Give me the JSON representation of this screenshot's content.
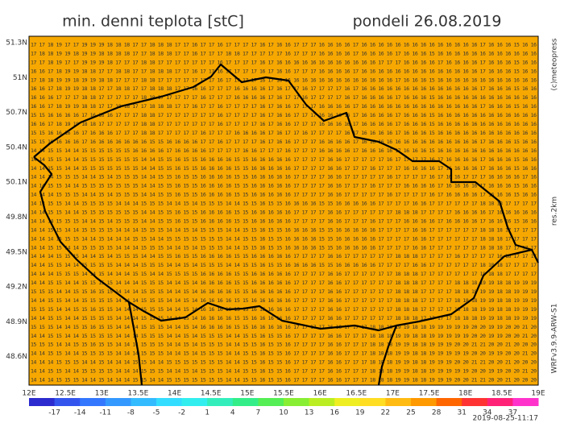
{
  "header": {
    "title": "min. denni teplota [stC]",
    "date": "pondeli 26.08.2019"
  },
  "side_texts": {
    "copyright": "(c)meteopress",
    "resolution": "res.2km",
    "model": "WRFv3.9.9-ARW-S1"
  },
  "timestamp": "2019-08-25-11:17",
  "map": {
    "lat_labels": [
      "51.3N",
      "51N",
      "50.7N",
      "50.4N",
      "50.1N",
      "49.8N",
      "49.5N",
      "49.2N",
      "48.9N",
      "48.6N"
    ],
    "lon_labels": [
      "12E",
      "12.5E",
      "13E",
      "13.5E",
      "14E",
      "14.5E",
      "15E",
      "15.5E",
      "16E",
      "16.5E",
      "17E",
      "17.5E",
      "18E",
      "18.5E",
      "19E"
    ],
    "background": "#f7a800",
    "rows": [
      "17 17 18 19 17 17 19 19 19 18 18 18 17 17 18 18 18 17 17 16 17 17 16 17 17 17 17 16 17 16 16 17 17 17 16 16 16 16 17 16 16 16 16 16 16 16 16 16 16 16 16 16 16 17 16 16 16 15 16 16",
      "17 18 18 19 19 18 19 19 18 18 18 18 17 17 18 18 18 17 17 16 17 17 17 18 18 17 17 17 17 17 16 17 17 17 16 16 16 16 17 16 16 16 16 17 16 16 16 15 16 16 16 16 16 16 16 16 16 16 16 16",
      "17 17 18 19 17 17 19 19 19 18 17 17 17 18 18 17 17 17 17 17 17 17 16 17 17 17 17 16 17 16 16 16 16 16 16 16 16 16 16 16 16 17 17 17 16 16 16 16 17 16 16 16 16 17 16 16 16 15 16 16",
      "16 16 17 18 19 19 18 18 17 17 18 18 17 17 18 18 18 17 17 16 17 17 16 17 17 17 17 16 17 16 16 17 17 17 16 16 16 16 17 16 16 16 16 16 16 16 16 16 16 16 16 16 16 17 16 16 16 15 16 16",
      "17 18 18 19 19 18 19 19 18 18 17 17 17 18 18 17 17 17 17 17 17 17 16 17 17 17 17 16 17 16 16 16 16 16 16 16 16 16 16 16 16 16 16 17 16 16 16 15 16 16 16 16 16 16 16 16 16 16 16 16",
      "16 16 17 18 19 19 18 18 17 17 18 18 17 17 18 18 18 17 17 16 16 17 17 17 16 16 16 16 17 16 17 17 16 17 17 17 17 16 17 16 16 16 16 16 16 16 16 16 16 16 16 16 16 17 16 16 16 15 16 16",
      "16 16 16 17 17 17 18 18 17 17 17 17 17 18 18 17 17 17 17 17 16 17 17 17 16 16 16 16 17 16 17 17 16 17 17 17 17 16 17 16 16 16 16 17 16 16 16 15 16 16 16 16 16 16 16 16 16 16 16 16",
      "16 16 17 18 19 19 18 18 17 17 18 18 17 17 18 18 18 17 17 16 17 17 16 17 17 17 17 16 17 16 16 17 17 17 16 16 16 16 17 16 16 16 16 16 16 16 16 16 16 16 16 16 16 17 16 16 16 15 16 16",
      "15 15 16 16 16 16 17 16 16 16 17 17 17 18 18 17 17 17 17 17 17 17 16 17 17 17 17 16 17 16 16 17 17 17 16 16 16 16 17 16 16 16 16 17 16 16 16 15 16 16 16 16 16 16 16 16 16 16 16 16",
      "16 16 17 18 19 19 18 18 17 17 17 17 17 18 18 17 17 17 17 17 17 17 16 17 17 17 17 16 17 16 16 17 17 17 16 16 16 16 17 16 16 16 16 17 16 16 16 15 16 16 16 16 16 16 16 16 16 16 16 16",
      "15 15 16 16 16 16 17 16 16 16 17 17 17 18 18 17 17 17 17 17 16 17 17 17 16 16 16 16 17 16 17 17 16 17 17 17 17 16 17 16 16 16 16 17 16 16 16 15 16 16 16 16 16 16 16 16 16 16 16 16",
      "15 15 16 16 16 16 17 16 16 16 16 16 16 16 15 15 16 16 16 16 17 17 16 17 17 17 17 16 17 16 16 17 17 17 16 16 16 16 17 16 16 16 16 16 16 16 16 16 16 16 16 16 16 17 16 16 16 15 16 16",
      "14 14 15 15 14 14 15 15 15 15 15 15 16 16 16 16 17 16 16 16 16 17 17 17 17 16 16 17 17 17 16 17 17 17 16 16 16 16 17 16 16 16 16 17 16 16 16 15 16 16 16 16 16 16 16 16 16 16 16 16",
      "14 14 15 15 14 14 15 15 15 15 15 15 15 14 14 15 15 16 15 15 16 16 16 16 15 15 16 16 16 16 16 17 17 17 17 16 16 17 17 17 17 17 16 17 17 17 17 16 17 16 16 16 16 17 16 16 16 15 16 16",
      "14 14 15 15 14 14 15 15 15 15 15 15 15 14 14 15 15 16 15 15 16 16 16 16 15 15 16 16 16 16 16 17 17 17 17 16 16 17 17 17 16 17 17 17 16 16 16 16 17 16 16 16 16 17 16 16 16 15 16 16",
      "14 14 14 15 15 15 14 14 15 14 15 15 15 14 14 15 15 16 15 15 16 16 16 16 15 15 16 16 16 16 16 17 17 17 17 16 16 17 17 17 17 17 16 17 17 17 17 16 17 16 16 17 17 17 16 16 16 16 17 16",
      "14 14 15 15 14 14 15 15 15 15 15 15 15 14 14 15 15 16 15 15 16 16 16 16 15 15 16 16 16 16 16 17 17 17 17 16 16 17 17 17 16 17 17 17 16 16 16 16 17 16 16 16 16 17 16 16 16 15 16 16",
      "14 14 14 15 15 15 14 14 15 14 15 15 15 14 14 15 15 16 15 15 16 16 16 16 15 15 16 16 16 16 16 17 17 17 17 16 16 17 17 17 17 17 16 17 17 17 17 16 17 16 16 16 16 17 16 16 16 15 16 16",
      "14 14 15 15 14 14 15 15 15 15 14 14 14 15 15 15 14 14 15 14 15 15 15 14 14 15 15 16 15 15 16 16 16 16 15 15 16 16 16 16 16 17 17 17 17 16 16 17 17 17 17 17 17 18 18 18 17 17 17 17",
      "14 14 15 15 14 14 15 15 15 15 15 15 15 14 14 15 15 16 15 15 16 16 16 16 15 15 16 16 16 16 16 17 17 17 17 16 16 17 17 17 17 17 17 18 18 18 17 17 17 17 16 16 16 16 17 16 16 16 16 16",
      "14 14 14 15 15 15 14 14 15 14 15 15 15 14 14 15 15 16 15 15 16 16 16 16 15 15 16 16 16 16 16 17 17 17 17 16 16 17 17 17 16 17 17 17 16 16 16 16 17 16 16 16 16 17 16 16 16 15 16 16",
      "14 14 15 15 14 14 15 15 15 15 14 14 14 15 15 15 14 14 15 14 15 15 15 14 14 15 15 16 15 15 16 16 16 16 15 15 16 16 16 16 16 17 17 17 17 16 16 17 17 17 17 17 17 18 18 18 17 17 17 17",
      "14 14 14 15 15 15 14 14 15 14 14 14 15 15 14 14 15 15 15 15 15 15 15 14 14 15 15 16 15 15 16 16 16 16 15 15 16 16 16 16 16 17 17 17 17 16 16 17 17 17 17 17 17 18 18 18 17 17 17 17",
      "14 14 15 15 14 14 15 15 15 15 14 14 14 15 15 15 14 14 15 14 15 15 15 14 14 15 15 16 15 15 16 16 16 16 15 15 16 16 16 16 16 17 17 17 17 16 16 17 17 17 17 17 17 18 18 18 17 17 17 17",
      "14 14 14 15 15 15 14 14 15 14 15 15 15 14 14 15 15 16 15 15 16 16 16 16 15 15 16 16 16 16 16 17 17 17 17 16 16 17 17 17 17 17 17 18 18 18 17 17 17 17 16 17 17 17 17 16 16 17 17 17",
      "14 14 15 15 14 14 15 15 15 15 14 14 14 15 15 15 14 14 15 14 15 15 15 14 14 15 15 16 15 15 16 16 16 16 15 15 16 16 16 16 16 17 17 17 17 16 16 17 17 17 17 17 17 18 18 18 17 17 17 17",
      "14 14 14 15 15 15 14 14 15 14 14 14 15 15 14 14 15 15 15 15 16 16 16 16 15 15 16 16 16 16 16 17 17 17 17 16 16 17 17 17 17 17 17 18 18 18 17 17 17 17 17 17 17 18 18 18 17 17 17 17",
      "14 14 15 15 14 14 15 15 15 15 14 14 14 15 15 15 14 14 15 14 16 16 16 16 15 15 16 16 16 16 16 17 17 17 17 16 16 17 17 17 17 17 17 18 18 18 17 17 17 17 18 18 18 19 19 18 18 19 19 19",
      "15 15 15 14 14 15 15 16 15 15 14 14 14 15 15 15 14 14 15 14 16 16 16 16 15 15 16 16 16 16 16 17 17 17 17 16 16 17 17 17 17 17 17 18 18 18 17 17 17 17 18 18 18 19 19 18 18 19 19 19",
      "14 14 15 15 14 14 15 15 15 15 14 14 14 15 15 15 14 14 15 14 16 16 16 16 15 15 16 16 16 16 16 17 17 17 17 16 16 17 17 17 17 17 17 18 18 18 17 17 17 17 18 18 18 19 19 18 18 19 19 19",
      "15 15 15 14 14 15 15 16 15 15 14 14 14 15 15 15 14 14 15 14 16 16 16 16 15 15 16 16 16 16 16 17 17 17 17 16 16 17 17 17 17 17 17 18 18 18 17 17 17 17 18 18 18 19 19 18 18 19 19 19",
      "14 14 15 15 14 14 15 15 15 15 14 14 14 15 15 15 14 14 15 14 16 16 16 16 15 15 16 16 16 16 16 17 17 17 17 16 16 17 17 17 17 17 17 18 18 18 17 17 17 17 18 18 18 19 19 18 18 19 19 19",
      "15 15 15 14 14 15 15 16 15 15 14 14 14 15 15 15 14 14 15 14 16 16 16 16 15 15 16 16 16 16 16 17 17 17 17 16 16 17 17 17 18 18 18 19 19 18 18 19 19 19 19 19 20 20 19 19 20 20 21 20",
      "14 14 15 15 14 14 15 15 15 15 14 14 14 15 15 15 14 14 15 14 15 15 15 14 14 15 15 16 15 15 16 17 17 17 17 16 16 17 17 17 18 18 18 19 19 18 18 19 19 19 19 19 20 20 19 19 20 20 21 20",
      "15 15 15 14 14 15 15 16 15 15 14 14 14 15 15 15 14 14 15 14 15 15 15 14 14 15 15 16 15 15 16 17 17 17 17 16 16 17 17 17 18 18 18 19 19 18 18 19 19 19 20 20 21 21 20 20 21 20 20 20",
      "14 14 15 15 14 14 15 15 15 15 14 14 14 15 15 15 14 14 15 14 15 15 15 14 14 15 15 16 15 15 16 17 17 17 17 16 16 17 17 17 18 18 18 19 19 18 18 19 19 19 19 19 20 20 19 19 20 20 21 20",
      "14 14 14 15 15 15 14 14 15 14 14 14 15 15 14 14 15 15 15 15 15 15 15 14 14 15 15 16 15 15 16 17 17 17 17 16 16 17 17 17 18 18 18 19 19 18 18 19 19 19 20 20 21 21 20 20 21 20 20 20",
      "14 14 15 15 14 14 15 15 15 15 14 14 14 15 15 15 14 14 15 14 15 15 15 14 14 15 15 16 15 15 16 17 17 17 17 16 16 17 17 17 18 18 18 19 19 18 18 19 19 19 19 19 20 20 19 19 20 20 21 20",
      "14 14 14 15 15 15 14 14 15 14 14 14 15 15 14 14 15 15 15 15 15 15 15 14 14 15 15 16 15 15 16 17 17 17 17 16 16 17 17 17 18 18 18 19 19 18 18 19 19 19 20 20 21 21 20 20 21 20 20 20"
    ]
  },
  "colorbar": {
    "labels": [
      -17,
      -14,
      -11,
      -8,
      -5,
      -2,
      1,
      4,
      7,
      10,
      13,
      16,
      19,
      22,
      25,
      28,
      31,
      34,
      37
    ],
    "colors": [
      "#2b2bcf",
      "#3355ee",
      "#3377ff",
      "#3399ff",
      "#33bbff",
      "#33ddff",
      "#33eeee",
      "#33eebb",
      "#33ee88",
      "#55ee55",
      "#88ee33",
      "#bbee22",
      "#eeee22",
      "#ffdd22",
      "#ffbb11",
      "#ff9900",
      "#ff6600",
      "#ff3333",
      "#ff2277",
      "#ff33cc"
    ]
  }
}
